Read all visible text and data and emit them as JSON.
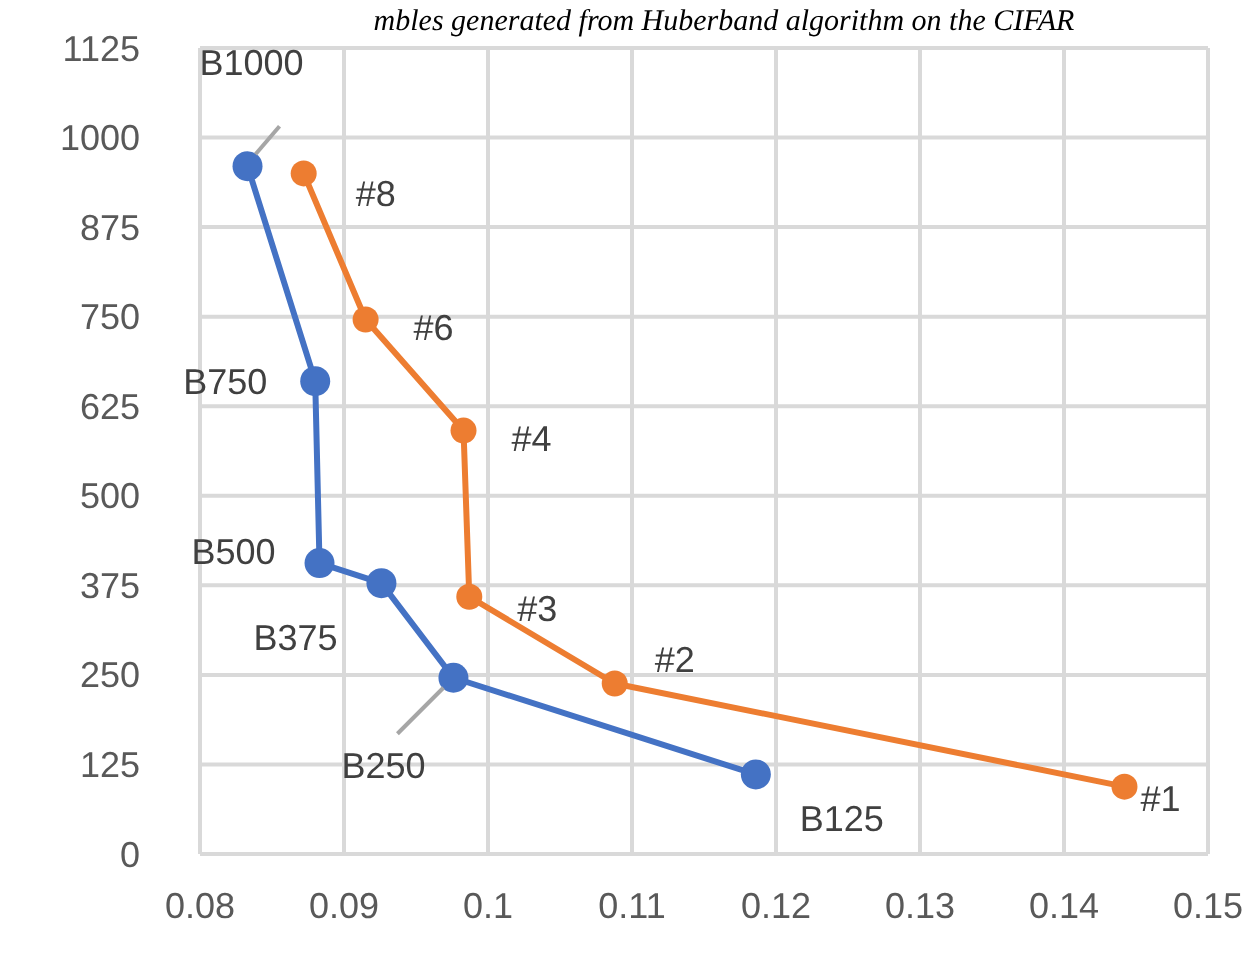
{
  "chart_data": {
    "type": "line",
    "title": "mbles generated from Huberband algorithm on the CIFAR",
    "xlim": [
      0.08,
      0.15
    ],
    "xticks": [
      0.08,
      0.09,
      {
        "value": 0.1,
        "label": "0.1"
      },
      0.11,
      0.12,
      0.13,
      0.14,
      0.15
    ],
    "ylim": [
      0,
      1125
    ],
    "yticks": [
      0,
      125,
      250,
      375,
      500,
      625,
      750,
      875,
      1000,
      1125
    ],
    "grid": true,
    "marker": "circle",
    "line_style": "solid",
    "series": [
      {
        "color": "#4472c4",
        "x": [
          0.0833,
          0.088,
          0.0883,
          0.0926,
          0.0976,
          0.1186
        ],
        "values": [
          960,
          660,
          406,
          378,
          246,
          111
        ]
      },
      {
        "color": "#ed7d31",
        "x": [
          0.0872,
          0.0915,
          0.0983,
          0.0987,
          0.1088,
          0.1442
        ],
        "values": [
          950,
          746,
          591,
          359,
          238,
          94
        ]
      }
    ],
    "annotations": [
      {
        "text": "B1000",
        "x": 0.0833,
        "y": 960
      },
      {
        "text": "B750",
        "x": 0.088,
        "y": 660
      },
      {
        "text": "B500",
        "x": 0.0883,
        "y": 406
      },
      {
        "text": "B375",
        "x": 0.0926,
        "y": 378
      },
      {
        "text": "B250",
        "x": 0.0976,
        "y": 246
      },
      {
        "text": "B125",
        "x": 0.1186,
        "y": 111
      },
      {
        "text": "#8",
        "x": 0.0872,
        "y": 950
      },
      {
        "text": "#6",
        "x": 0.0915,
        "y": 746
      },
      {
        "text": "#4",
        "x": 0.0983,
        "y": 591
      },
      {
        "text": "#3",
        "x": 0.0987,
        "y": 359
      },
      {
        "text": "#2",
        "x": 0.1088,
        "y": 238
      },
      {
        "text": "#1",
        "x": 0.1442,
        "y": 94
      }
    ]
  }
}
